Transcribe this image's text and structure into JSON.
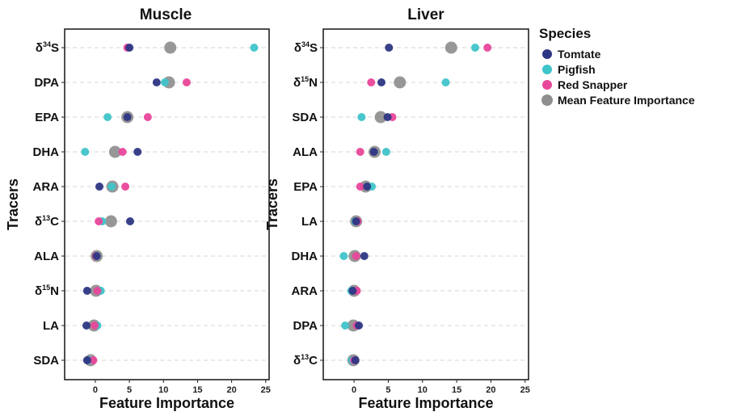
{
  "chart_data": [
    {
      "type": "scatter",
      "title": "Muscle",
      "xlabel": "Feature Importance",
      "ylabel": "Tracers",
      "xlim": [
        -4.5,
        25.5
      ],
      "xticks": [
        0,
        5,
        10,
        15,
        20,
        25
      ],
      "grid": "horizontal dashed",
      "categories": [
        {
          "base": "δ",
          "sup": "34",
          "rest": "S"
        },
        {
          "base": "DPA",
          "sup": "",
          "rest": ""
        },
        {
          "base": "EPA",
          "sup": "",
          "rest": ""
        },
        {
          "base": "DHA",
          "sup": "",
          "rest": ""
        },
        {
          "base": "ARA",
          "sup": "",
          "rest": ""
        },
        {
          "base": "δ",
          "sup": "13",
          "rest": "C"
        },
        {
          "base": "ALA",
          "sup": "",
          "rest": ""
        },
        {
          "base": "δ",
          "sup": "15",
          "rest": "N"
        },
        {
          "base": "LA",
          "sup": "",
          "rest": ""
        },
        {
          "base": "SDA",
          "sup": "",
          "rest": ""
        }
      ],
      "series": [
        {
          "name": "Mean Feature Importance",
          "values": [
            11.0,
            10.8,
            4.7,
            2.9,
            2.5,
            2.3,
            0.2,
            0.1,
            -0.2,
            -0.7
          ]
        },
        {
          "name": "Pigfish",
          "values": [
            23.3,
            10.2,
            1.8,
            -1.5,
            2.4,
            1.0,
            0.2,
            0.8,
            0.3,
            -0.8
          ]
        },
        {
          "name": "Red Snapper",
          "values": [
            4.7,
            13.4,
            7.7,
            4.0,
            4.4,
            0.5,
            0.1,
            0.3,
            -0.1,
            -0.3
          ]
        },
        {
          "name": "Tomtate",
          "values": [
            5.0,
            9.0,
            4.7,
            6.2,
            0.6,
            5.1,
            0.2,
            -1.2,
            -1.3,
            -1.2
          ]
        }
      ]
    },
    {
      "type": "scatter",
      "title": "Liver",
      "xlabel": "Feature Importance",
      "ylabel": "Tracers",
      "xlim": [
        -4.5,
        25.5
      ],
      "xticks": [
        0,
        5,
        10,
        15,
        20,
        25
      ],
      "grid": "horizontal dashed",
      "categories": [
        {
          "base": "δ",
          "sup": "34",
          "rest": "S"
        },
        {
          "base": "δ",
          "sup": "15",
          "rest": "N"
        },
        {
          "base": "SDA",
          "sup": "",
          "rest": ""
        },
        {
          "base": "ALA",
          "sup": "",
          "rest": ""
        },
        {
          "base": "EPA",
          "sup": "",
          "rest": ""
        },
        {
          "base": "LA",
          "sup": "",
          "rest": ""
        },
        {
          "base": "DHA",
          "sup": "",
          "rest": ""
        },
        {
          "base": "ARA",
          "sup": "",
          "rest": ""
        },
        {
          "base": "DPA",
          "sup": "",
          "rest": ""
        },
        {
          "base": "δ",
          "sup": "13",
          "rest": "C"
        }
      ],
      "series": [
        {
          "name": "Mean Feature Importance",
          "values": [
            14.2,
            6.7,
            3.9,
            3.0,
            1.7,
            0.3,
            0.1,
            0.0,
            -0.1,
            -0.1
          ]
        },
        {
          "name": "Pigfish",
          "values": [
            17.7,
            13.4,
            1.1,
            4.7,
            2.6,
            0.2,
            -1.5,
            -0.4,
            -1.3,
            -0.3
          ]
        },
        {
          "name": "Red Snapper",
          "values": [
            19.5,
            2.5,
            5.6,
            0.9,
            0.9,
            0.5,
            0.3,
            0.4,
            0.4,
            0.0
          ]
        },
        {
          "name": "Tomtate",
          "values": [
            5.1,
            4.0,
            4.9,
            2.9,
            1.9,
            0.3,
            1.5,
            -0.2,
            0.7,
            0.2
          ]
        }
      ]
    }
  ],
  "legend": {
    "title": "Species",
    "placement": "right",
    "entries": [
      {
        "name": "Tomtate",
        "color": "#2d3684"
      },
      {
        "name": "Pigfish",
        "color": "#3fc4c9"
      },
      {
        "name": "Red Snapper",
        "color": "#e9479a"
      },
      {
        "name": "Mean Feature Importance",
        "color": "#8e8e8e"
      }
    ]
  },
  "colors": {
    "Tomtate": "#2d3684",
    "Pigfish": "#3fc4c9",
    "Red Snapper": "#e9479a",
    "Mean Feature Importance": "#8e8e8e"
  }
}
